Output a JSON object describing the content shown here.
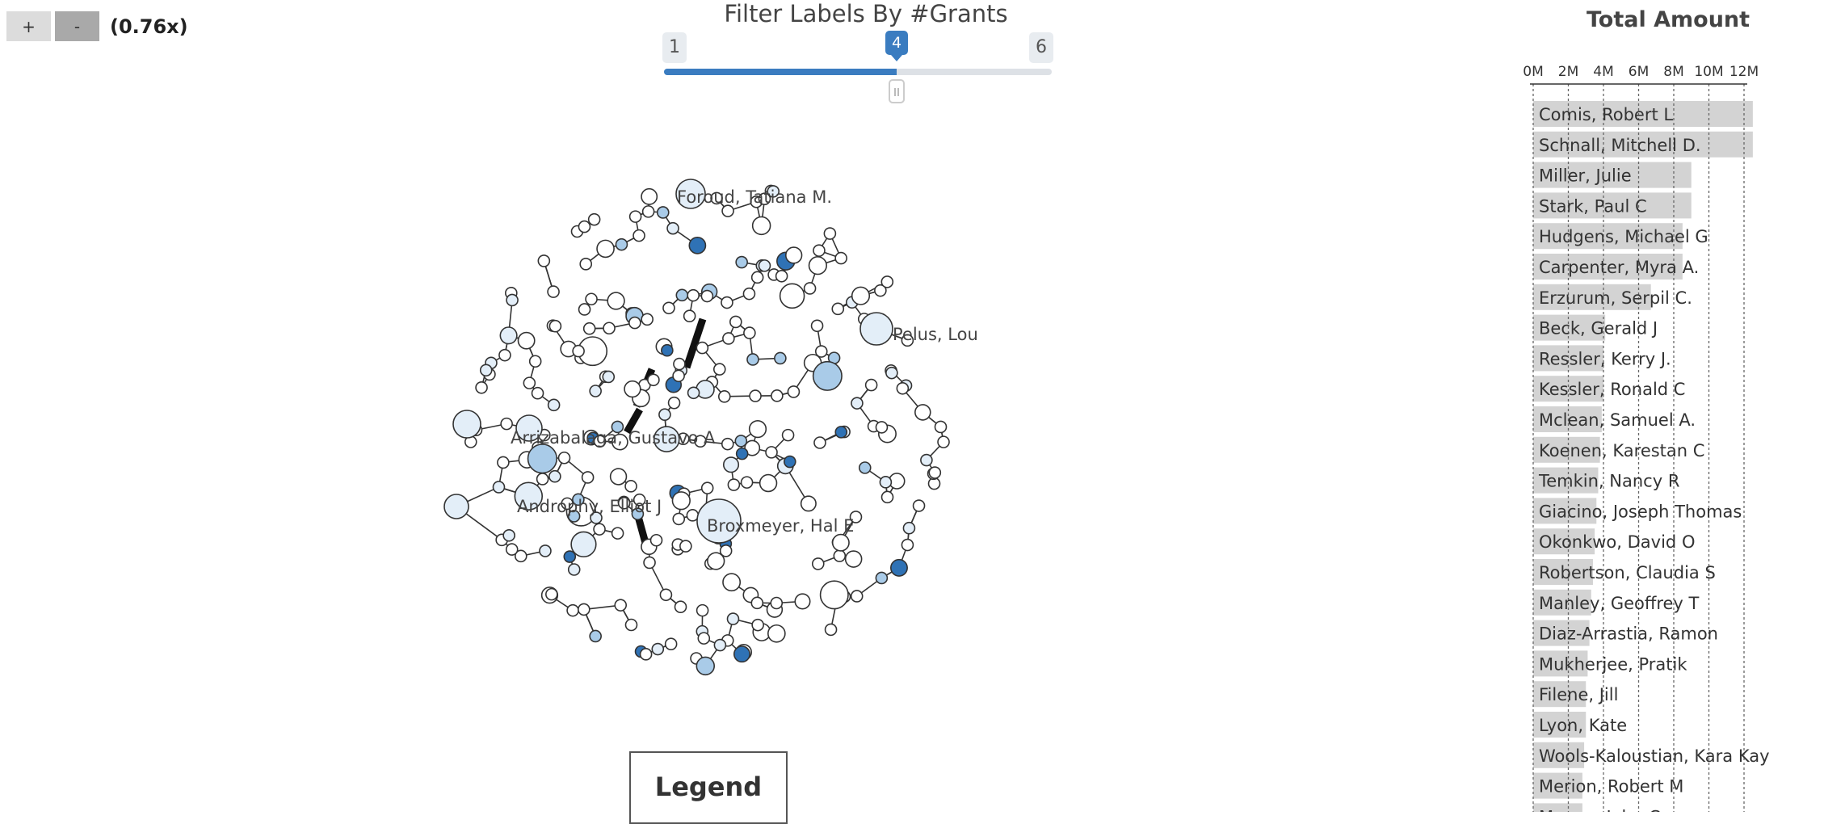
{
  "zoom": {
    "plus_label": "+",
    "minus_label": "-",
    "level": "(0.76x)"
  },
  "filter": {
    "title": "Filter Labels By #Grants",
    "min": 1,
    "max": 6,
    "value": 4,
    "min_label": "1",
    "max_label": "6",
    "value_label": "4"
  },
  "graph": {
    "labels": [
      "Foroud, Tatiana M.",
      "Pelus, Louis M",
      "Arrizabalaga, Gustavo A",
      "Androphy, Elliot J",
      "Broxmeyer, Hal E"
    ]
  },
  "legend": {
    "title": "Legend"
  },
  "colors": {
    "accent": "#3a7cc0",
    "bar": "#d3d3d3",
    "node_light": "#e3eef8",
    "node_mid": "#a9cbe8",
    "node_dark": "#2f72b5"
  },
  "chart_data": {
    "type": "bar",
    "orientation": "horizontal",
    "title": "Total Amount",
    "xlim": [
      0,
      12000000
    ],
    "tick_labels": [
      "0M",
      "2M",
      "4M",
      "6M",
      "8M",
      "10M",
      "12M"
    ],
    "tick_values": [
      0,
      2000000,
      4000000,
      6000000,
      8000000,
      10000000,
      12000000
    ],
    "categories": [
      "Comis, Robert L",
      "Schnall, Mitchell D.",
      "Miller, Julie",
      "Stark, Paul C",
      "Hudgens, Michael G",
      "Carpenter, Myra A.",
      "Erzurum, Serpil C.",
      "Beck, Gerald J",
      "Ressler, Kerry J.",
      "Kessler, Ronald C",
      "Mclean, Samuel A.",
      "Koenen, Karestan C",
      "Temkin, Nancy R",
      "Giacino, Joseph Thomas",
      "Okonkwo, David O",
      "Robertson, Claudia S",
      "Manley, Geoffrey T",
      "Diaz-Arrastia, Ramon",
      "Mukherjee, Pratik",
      "Filene, Jill",
      "Lyon, Kate",
      "Wools-Kaloustian, Kara Kay",
      "Merion, Robert M",
      "Magee, John C"
    ],
    "values": [
      12500000,
      12500000,
      9000000,
      9000000,
      8500000,
      8500000,
      6700000,
      4100000,
      4000000,
      4000000,
      3900000,
      3800000,
      3700000,
      3600000,
      3500000,
      3400000,
      3300000,
      3200000,
      3100000,
      3000000,
      3000000,
      2900000,
      2800000,
      2800000
    ]
  }
}
